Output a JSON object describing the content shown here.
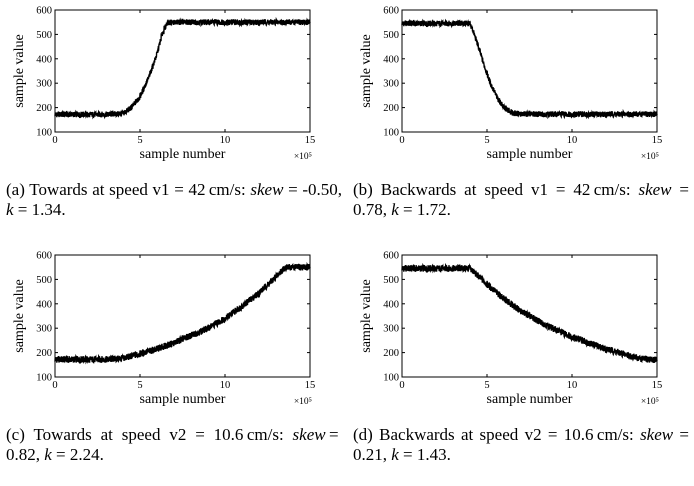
{
  "figure_colors": {
    "trace": "#000000",
    "axes": "#000000",
    "background": "#ffffff"
  },
  "chart_data": [
    {
      "type": "line",
      "panel": "a",
      "xlabel": "sample number",
      "ylabel": "sample value",
      "x_exponent": "×10⁵",
      "xlim": [
        0,
        15
      ],
      "ylim": [
        100,
        600
      ],
      "xticks": [
        0,
        5,
        10,
        15
      ],
      "yticks": [
        100,
        200,
        300,
        400,
        500,
        600
      ],
      "noise_band": 12,
      "x": [
        0,
        1,
        2,
        3,
        4,
        4.5,
        5,
        5.5,
        6,
        6.3,
        6.6,
        7,
        8,
        9,
        10,
        11,
        12,
        13,
        14,
        15
      ],
      "y": [
        172,
        172,
        172,
        172,
        175,
        200,
        245,
        320,
        420,
        500,
        548,
        550,
        550,
        550,
        550,
        550,
        550,
        550,
        550,
        550
      ],
      "caption": {
        "label": "(a)",
        "text_before": "Towards at speed v1 = 42 cm/s:",
        "skew_label": "skew",
        "skew_value": " = -0.50, ",
        "k_label": "k",
        "k_value": " = 1.34."
      }
    },
    {
      "type": "line",
      "panel": "b",
      "xlabel": "sample number",
      "ylabel": "sample value",
      "x_exponent": "×10⁵",
      "xlim": [
        0,
        15
      ],
      "ylim": [
        100,
        600
      ],
      "xticks": [
        0,
        5,
        10,
        15
      ],
      "yticks": [
        100,
        200,
        300,
        400,
        500,
        600
      ],
      "noise_band": 12,
      "x": [
        0,
        1,
        2,
        3,
        3.9,
        4.1,
        4.4,
        4.8,
        5.2,
        5.6,
        6,
        6.5,
        7,
        8,
        9,
        10,
        11,
        12,
        13,
        14,
        15
      ],
      "y": [
        545,
        545,
        545,
        545,
        545,
        530,
        470,
        380,
        300,
        240,
        200,
        178,
        174,
        173,
        173,
        173,
        173,
        173,
        173,
        173,
        173
      ],
      "caption": {
        "label": "(b)",
        "text_before": "Backwards at speed v1 = 42 cm/s:",
        "skew_label": "skew",
        "skew_value": " = 0.78, ",
        "k_label": "k",
        "k_value": " = 1.72."
      }
    },
    {
      "type": "line",
      "panel": "c",
      "xlabel": "sample number",
      "ylabel": "sample value",
      "x_exponent": "×10⁵",
      "xlim": [
        0,
        15
      ],
      "ylim": [
        100,
        600
      ],
      "xticks": [
        0,
        5,
        10,
        15
      ],
      "yticks": [
        100,
        200,
        300,
        400,
        500,
        600
      ],
      "noise_band": 14,
      "x": [
        0,
        1,
        2,
        3,
        4,
        5,
        6,
        7,
        8,
        9,
        10,
        11,
        12,
        13,
        13.5,
        14,
        15
      ],
      "y": [
        172,
        172,
        172,
        172,
        176,
        195,
        215,
        240,
        270,
        300,
        340,
        390,
        445,
        510,
        548,
        550,
        550
      ],
      "caption": {
        "label": "(c)",
        "text_before": "Towards at speed v2 = 10.6 cm/s:",
        "skew_label": "skew",
        "skew_value": " = 0.82, ",
        "k_label": "k",
        "k_value": " = 2.24."
      }
    },
    {
      "type": "line",
      "panel": "d",
      "xlabel": "sample number",
      "ylabel": "sample value",
      "x_exponent": "×10⁵",
      "xlim": [
        0,
        15
      ],
      "ylim": [
        100,
        600
      ],
      "xticks": [
        0,
        5,
        10,
        15
      ],
      "yticks": [
        100,
        200,
        300,
        400,
        500,
        600
      ],
      "noise_band": 14,
      "x": [
        0,
        1,
        2,
        3,
        4,
        5,
        6,
        7,
        8,
        9,
        10,
        11,
        12,
        13,
        14,
        15
      ],
      "y": [
        545,
        545,
        545,
        545,
        545,
        480,
        420,
        370,
        330,
        295,
        265,
        240,
        215,
        195,
        175,
        170
      ],
      "caption": {
        "label": "(d)",
        "text_before": "Backwards at speed v2 = 10.6 cm/s:",
        "skew_label": "skew",
        "skew_value": " = 0.21, ",
        "k_label": "k",
        "k_value": " = 1.43."
      }
    }
  ]
}
